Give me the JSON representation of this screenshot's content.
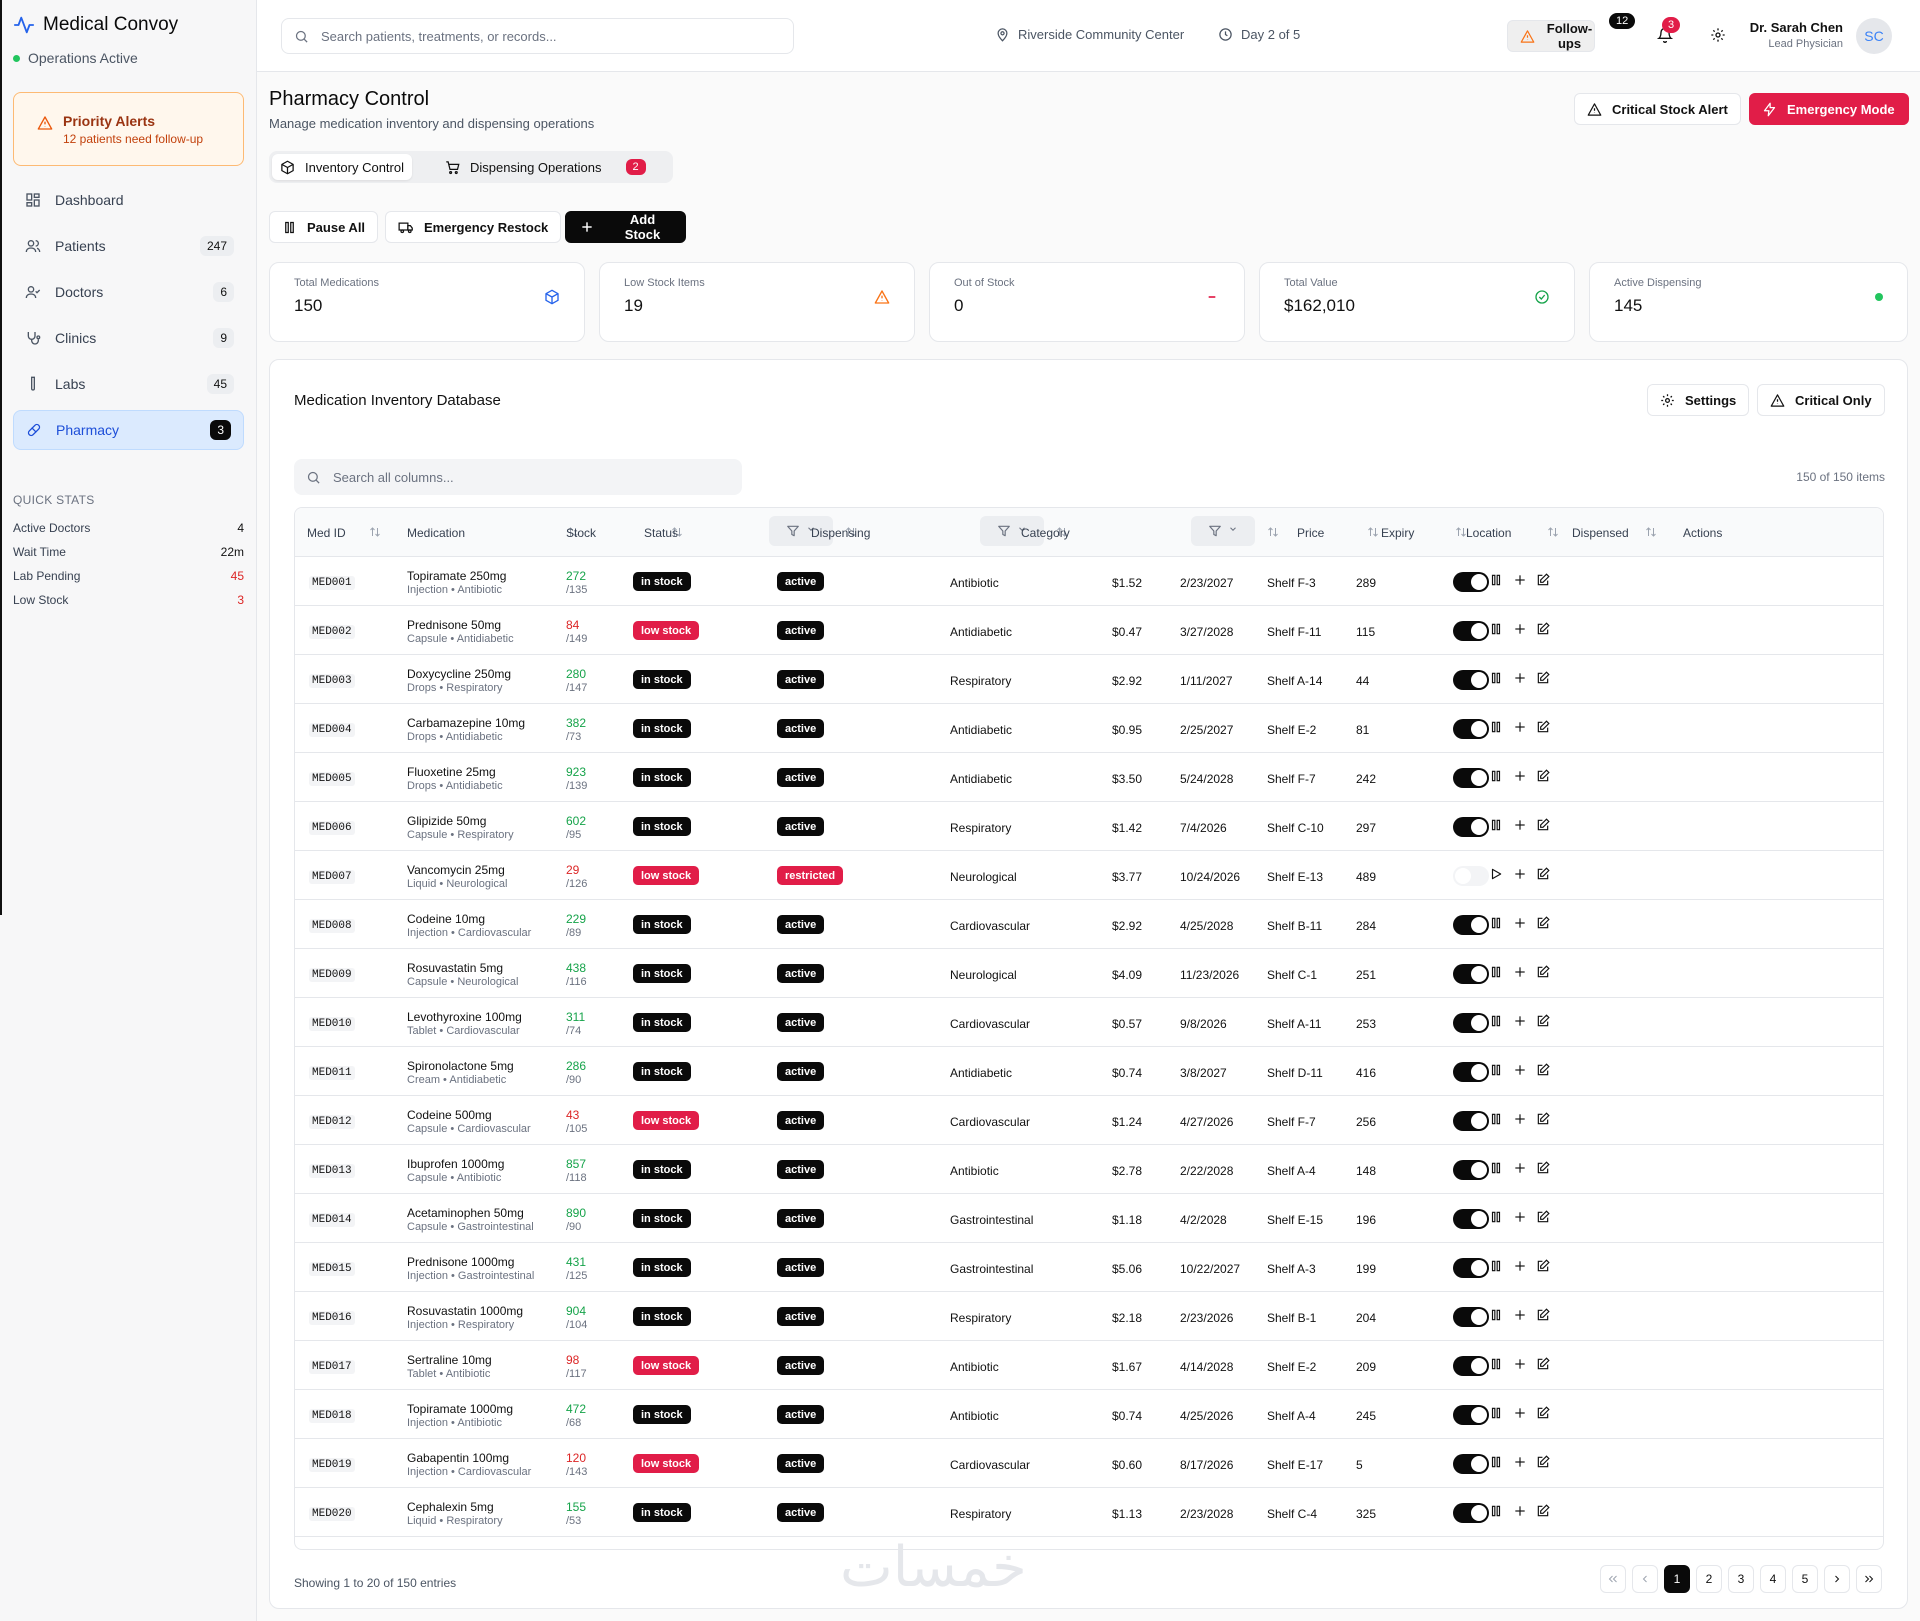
{
  "app": {
    "title": "Medical Convoy",
    "status": "Operations Active"
  },
  "priority_alert": {
    "title": "Priority Alerts",
    "subtitle": "12 patients need follow-up"
  },
  "sidebar": {
    "items": [
      {
        "label": "Dashboard",
        "count": ""
      },
      {
        "label": "Patients",
        "count": "247"
      },
      {
        "label": "Doctors",
        "count": "6"
      },
      {
        "label": "Clinics",
        "count": "9"
      },
      {
        "label": "Labs",
        "count": "45"
      },
      {
        "label": "Pharmacy",
        "count": "3"
      }
    ],
    "quick_stats_title": "QUICK STATS",
    "quick_stats": [
      {
        "label": "Active Doctors",
        "value": "4"
      },
      {
        "label": "Wait Time",
        "value": "22m"
      },
      {
        "label": "Lab Pending",
        "value": "45"
      },
      {
        "label": "Low Stock",
        "value": "3"
      }
    ]
  },
  "topbar": {
    "search_placeholder": "Search patients, treatments, or records...",
    "location": "Riverside Community Center",
    "day": "Day 2 of 5",
    "followups_label": "Follow-ups",
    "followups_count": "12",
    "notifications_count": "3",
    "user_name": "Dr. Sarah Chen",
    "user_role": "Lead Physician",
    "user_initials": "SC"
  },
  "page": {
    "title": "Pharmacy Control",
    "subtitle": "Manage medication inventory and dispensing operations",
    "critical_alert_label": "Critical Stock Alert",
    "emergency_label": "Emergency Mode",
    "tabs": [
      {
        "label": "Inventory Control"
      },
      {
        "label": "Dispensing Operations",
        "badge": "2"
      }
    ],
    "pause_label": "Pause All",
    "restock_label": "Emergency Restock",
    "add_stock_label": "Add Stock"
  },
  "stats": [
    {
      "label": "Total Medications",
      "value": "150",
      "icon": "package-icon"
    },
    {
      "label": "Low Stock Items",
      "value": "19",
      "icon": "warning-icon"
    },
    {
      "label": "Out of Stock",
      "value": "0",
      "icon": "minus-icon"
    },
    {
      "label": "Total Value",
      "value": "$162,010",
      "icon": "check-circle-icon"
    },
    {
      "label": "Active Dispensing",
      "value": "145",
      "icon": "status-dot-icon"
    }
  ],
  "inventory": {
    "title": "Medication Inventory Database",
    "settings_label": "Settings",
    "critical_only_label": "Critical Only",
    "search_placeholder": "Search all columns...",
    "items_count": "150 of 150 items",
    "columns": [
      "Med ID",
      "Medication",
      "Stock",
      "Status",
      "Dispensing",
      "Category",
      "Price",
      "Expiry",
      "Location",
      "Dispensed",
      "Actions"
    ],
    "rows": [
      {
        "id": "MED001",
        "name": "Topiramate 250mg",
        "sub": "Injection • Antibiotic",
        "stock": "272",
        "min": "/135",
        "status": "in stock",
        "disp": "active",
        "cat": "Antibiotic",
        "price": "$1.52",
        "expiry": "2/23/2027",
        "loc": "Shelf F-3",
        "dispensed": "289"
      },
      {
        "id": "MED002",
        "name": "Prednisone 50mg",
        "sub": "Capsule • Antidiabetic",
        "stock": "84",
        "min": "/149",
        "status": "low stock",
        "disp": "active",
        "cat": "Antidiabetic",
        "price": "$0.47",
        "expiry": "3/27/2028",
        "loc": "Shelf F-11",
        "dispensed": "115"
      },
      {
        "id": "MED003",
        "name": "Doxycycline 250mg",
        "sub": "Drops • Respiratory",
        "stock": "280",
        "min": "/147",
        "status": "in stock",
        "disp": "active",
        "cat": "Respiratory",
        "price": "$2.92",
        "expiry": "1/11/2027",
        "loc": "Shelf A-14",
        "dispensed": "44"
      },
      {
        "id": "MED004",
        "name": "Carbamazepine 10mg",
        "sub": "Drops • Antidiabetic",
        "stock": "382",
        "min": "/73",
        "status": "in stock",
        "disp": "active",
        "cat": "Antidiabetic",
        "price": "$0.95",
        "expiry": "2/25/2027",
        "loc": "Shelf E-2",
        "dispensed": "81"
      },
      {
        "id": "MED005",
        "name": "Fluoxetine 25mg",
        "sub": "Drops • Antidiabetic",
        "stock": "923",
        "min": "/139",
        "status": "in stock",
        "disp": "active",
        "cat": "Antidiabetic",
        "price": "$3.50",
        "expiry": "5/24/2028",
        "loc": "Shelf F-7",
        "dispensed": "242"
      },
      {
        "id": "MED006",
        "name": "Glipizide 50mg",
        "sub": "Capsule • Respiratory",
        "stock": "602",
        "min": "/95",
        "status": "in stock",
        "disp": "active",
        "cat": "Respiratory",
        "price": "$1.42",
        "expiry": "7/4/2026",
        "loc": "Shelf C-10",
        "dispensed": "297"
      },
      {
        "id": "MED007",
        "name": "Vancomycin 25mg",
        "sub": "Liquid • Neurological",
        "stock": "29",
        "min": "/126",
        "status": "low stock",
        "disp": "restricted",
        "cat": "Neurological",
        "price": "$3.77",
        "expiry": "10/24/2026",
        "loc": "Shelf E-13",
        "dispensed": "489"
      },
      {
        "id": "MED008",
        "name": "Codeine 10mg",
        "sub": "Injection • Cardiovascular",
        "stock": "229",
        "min": "/89",
        "status": "in stock",
        "disp": "active",
        "cat": "Cardiovascular",
        "price": "$2.92",
        "expiry": "4/25/2028",
        "loc": "Shelf B-11",
        "dispensed": "284"
      },
      {
        "id": "MED009",
        "name": "Rosuvastatin 5mg",
        "sub": "Capsule • Neurological",
        "stock": "438",
        "min": "/116",
        "status": "in stock",
        "disp": "active",
        "cat": "Neurological",
        "price": "$4.09",
        "expiry": "11/23/2026",
        "loc": "Shelf C-1",
        "dispensed": "251"
      },
      {
        "id": "MED010",
        "name": "Levothyroxine 100mg",
        "sub": "Tablet • Cardiovascular",
        "stock": "311",
        "min": "/74",
        "status": "in stock",
        "disp": "active",
        "cat": "Cardiovascular",
        "price": "$0.57",
        "expiry": "9/8/2026",
        "loc": "Shelf A-11",
        "dispensed": "253"
      },
      {
        "id": "MED011",
        "name": "Spironolactone 5mg",
        "sub": "Cream • Antidiabetic",
        "stock": "286",
        "min": "/90",
        "status": "in stock",
        "disp": "active",
        "cat": "Antidiabetic",
        "price": "$0.74",
        "expiry": "3/8/2027",
        "loc": "Shelf D-11",
        "dispensed": "416"
      },
      {
        "id": "MED012",
        "name": "Codeine 500mg",
        "sub": "Capsule • Cardiovascular",
        "stock": "43",
        "min": "/105",
        "status": "low stock",
        "disp": "active",
        "cat": "Cardiovascular",
        "price": "$1.24",
        "expiry": "4/27/2026",
        "loc": "Shelf F-7",
        "dispensed": "256"
      },
      {
        "id": "MED013",
        "name": "Ibuprofen 1000mg",
        "sub": "Capsule • Antibiotic",
        "stock": "857",
        "min": "/118",
        "status": "in stock",
        "disp": "active",
        "cat": "Antibiotic",
        "price": "$2.78",
        "expiry": "2/22/2028",
        "loc": "Shelf A-4",
        "dispensed": "148"
      },
      {
        "id": "MED014",
        "name": "Acetaminophen 50mg",
        "sub": "Capsule • Gastrointestinal",
        "stock": "890",
        "min": "/90",
        "status": "in stock",
        "disp": "active",
        "cat": "Gastrointestinal",
        "price": "$1.18",
        "expiry": "4/2/2028",
        "loc": "Shelf E-15",
        "dispensed": "196"
      },
      {
        "id": "MED015",
        "name": "Prednisone 1000mg",
        "sub": "Injection • Gastrointestinal",
        "stock": "431",
        "min": "/125",
        "status": "in stock",
        "disp": "active",
        "cat": "Gastrointestinal",
        "price": "$5.06",
        "expiry": "10/22/2027",
        "loc": "Shelf A-3",
        "dispensed": "199"
      },
      {
        "id": "MED016",
        "name": "Rosuvastatin 1000mg",
        "sub": "Injection • Respiratory",
        "stock": "904",
        "min": "/104",
        "status": "in stock",
        "disp": "active",
        "cat": "Respiratory",
        "price": "$2.18",
        "expiry": "2/23/2026",
        "loc": "Shelf B-1",
        "dispensed": "204"
      },
      {
        "id": "MED017",
        "name": "Sertraline 10mg",
        "sub": "Tablet • Antibiotic",
        "stock": "98",
        "min": "/117",
        "status": "low stock",
        "disp": "active",
        "cat": "Antibiotic",
        "price": "$1.67",
        "expiry": "4/14/2028",
        "loc": "Shelf E-2",
        "dispensed": "209"
      },
      {
        "id": "MED018",
        "name": "Topiramate 1000mg",
        "sub": "Injection • Antibiotic",
        "stock": "472",
        "min": "/68",
        "status": "in stock",
        "disp": "active",
        "cat": "Antibiotic",
        "price": "$0.74",
        "expiry": "4/25/2026",
        "loc": "Shelf A-4",
        "dispensed": "245"
      },
      {
        "id": "MED019",
        "name": "Gabapentin 100mg",
        "sub": "Injection • Cardiovascular",
        "stock": "120",
        "min": "/143",
        "status": "low stock",
        "disp": "active",
        "cat": "Cardiovascular",
        "price": "$0.60",
        "expiry": "8/17/2026",
        "loc": "Shelf E-17",
        "dispensed": "5"
      },
      {
        "id": "MED020",
        "name": "Cephalexin 5mg",
        "sub": "Liquid • Respiratory",
        "stock": "155",
        "min": "/53",
        "status": "in stock",
        "disp": "active",
        "cat": "Respiratory",
        "price": "$1.13",
        "expiry": "2/23/2028",
        "loc": "Shelf C-4",
        "dispensed": "325"
      }
    ],
    "footer": "Showing 1 to 20 of 150 entries",
    "pages": [
      "1",
      "2",
      "3",
      "4",
      "5"
    ],
    "current_page": "1"
  },
  "watermark": "خمسات",
  "colors": {
    "accent": "#e11d48",
    "success": "#16a34a",
    "warning": "#f97316",
    "info": "#2563eb",
    "dark": "#0a0a0a"
  }
}
